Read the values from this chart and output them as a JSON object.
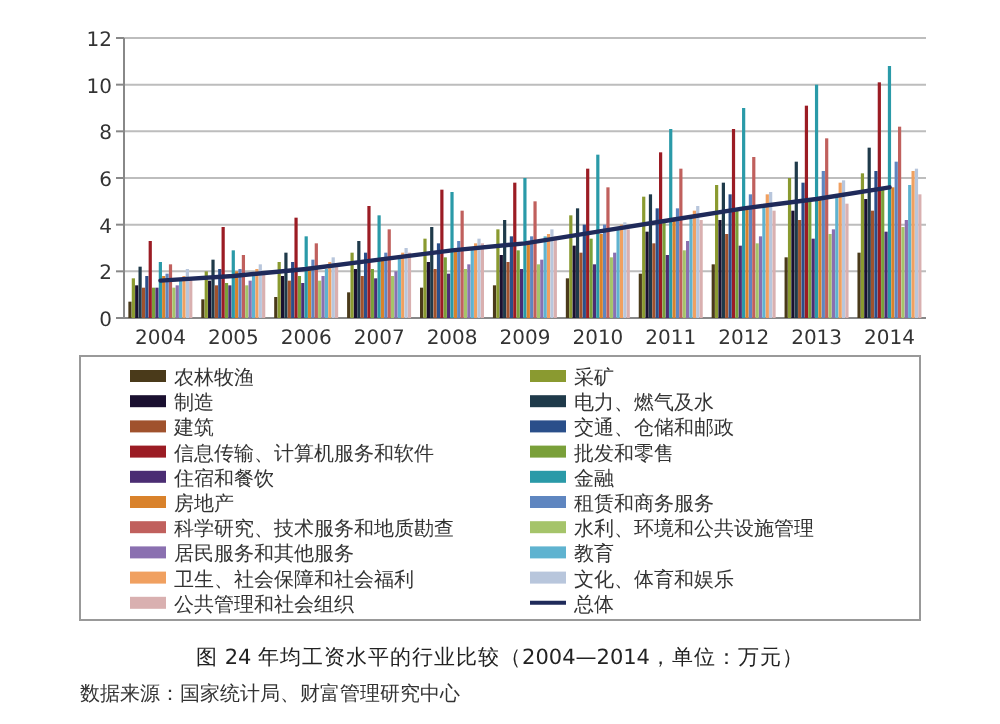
{
  "chart_data": {
    "type": "bar",
    "title": "图 24 年均工资水平的行业比较（2004—2014，单位：万元）",
    "annotations": [
      "数据来源：国家统计局、财富管理研究中心"
    ],
    "categories": [
      "2004",
      "2005",
      "2006",
      "2007",
      "2008",
      "2009",
      "2010",
      "2011",
      "2012",
      "2013",
      "2014"
    ],
    "ylim": [
      0,
      12
    ],
    "yticks": [
      0,
      2,
      4,
      6,
      8,
      10,
      12
    ],
    "grid": "y",
    "legend": "bottom",
    "series": [
      {
        "name": "农林牧渔",
        "color": "#4a3a1a",
        "values": [
          0.7,
          0.8,
          0.9,
          1.1,
          1.3,
          1.4,
          1.7,
          1.9,
          2.3,
          2.6,
          2.8
        ]
      },
      {
        "name": "采矿",
        "color": "#8a9a30",
        "values": [
          1.7,
          2.0,
          2.4,
          2.8,
          3.4,
          3.8,
          4.4,
          5.2,
          5.7,
          6.0,
          6.2
        ]
      },
      {
        "name": "制造",
        "color": "#1a1030",
        "values": [
          1.4,
          1.6,
          1.8,
          2.1,
          2.4,
          2.7,
          3.1,
          3.7,
          4.2,
          4.6,
          5.1
        ]
      },
      {
        "name": "电力、燃气及水",
        "color": "#1f3a4a",
        "values": [
          2.2,
          2.5,
          2.8,
          3.3,
          3.9,
          4.2,
          4.7,
          5.3,
          5.8,
          6.7,
          7.3
        ]
      },
      {
        "name": "建筑",
        "color": "#a0522d",
        "values": [
          1.3,
          1.4,
          1.6,
          1.8,
          2.1,
          2.4,
          2.8,
          3.2,
          3.6,
          4.2,
          4.6
        ]
      },
      {
        "name": "交通、仓储和邮政",
        "color": "#2a4f8a",
        "values": [
          1.8,
          2.1,
          2.4,
          2.8,
          3.2,
          3.5,
          4.0,
          4.7,
          5.3,
          5.8,
          6.3
        ]
      },
      {
        "name": "信息传输、计算机服务和软件",
        "color": "#9b1c24",
        "values": [
          3.3,
          3.9,
          4.3,
          4.8,
          5.5,
          5.8,
          6.4,
          7.1,
          8.1,
          9.1,
          10.1
        ]
      },
      {
        "name": "批发和零售",
        "color": "#7aa03a",
        "values": [
          1.3,
          1.5,
          1.8,
          2.1,
          2.6,
          2.9,
          3.4,
          4.1,
          4.6,
          5.0,
          5.6
        ]
      },
      {
        "name": "住宿和餐饮",
        "color": "#4b2d73",
        "values": [
          1.3,
          1.4,
          1.5,
          1.7,
          1.9,
          2.1,
          2.3,
          2.7,
          3.1,
          3.4,
          3.7
        ]
      },
      {
        "name": "金融",
        "color": "#2a9aa8",
        "values": [
          2.4,
          2.9,
          3.5,
          4.4,
          5.4,
          6.0,
          7.0,
          8.1,
          9.0,
          10.0,
          10.8
        ]
      },
      {
        "name": "房地产",
        "color": "#d9822b",
        "values": [
          1.8,
          2.0,
          2.2,
          2.6,
          3.0,
          3.2,
          3.6,
          4.3,
          4.7,
          5.1,
          5.6
        ]
      },
      {
        "name": "租赁和商务服务",
        "color": "#5f86c0",
        "values": [
          1.9,
          2.1,
          2.5,
          2.8,
          3.3,
          3.5,
          4.0,
          4.7,
          5.3,
          6.3,
          6.7
        ]
      },
      {
        "name": "科学研究、技术服务和地质勘查",
        "color": "#c0605d",
        "values": [
          2.3,
          2.7,
          3.2,
          3.8,
          4.6,
          5.0,
          5.6,
          6.4,
          6.9,
          7.7,
          8.2
        ]
      },
      {
        "name": "水利、环境和公共设施管理",
        "color": "#a5c46a",
        "values": [
          1.3,
          1.4,
          1.6,
          1.8,
          2.1,
          2.3,
          2.6,
          2.9,
          3.2,
          3.6,
          3.9
        ]
      },
      {
        "name": "居民服务和其他服务",
        "color": "#8a70b0",
        "values": [
          1.4,
          1.6,
          1.8,
          2.0,
          2.3,
          2.5,
          2.8,
          3.3,
          3.5,
          3.8,
          4.2
        ]
      },
      {
        "name": "教育",
        "color": "#5fb3d0",
        "values": [
          1.6,
          1.8,
          2.1,
          2.6,
          3.0,
          3.5,
          3.9,
          4.3,
          4.8,
          5.2,
          5.7
        ]
      },
      {
        "name": "卫生、社会保障和社会福利",
        "color": "#f0a060",
        "values": [
          1.8,
          2.1,
          2.4,
          2.8,
          3.2,
          3.6,
          4.0,
          4.6,
          5.3,
          5.8,
          6.3
        ]
      },
      {
        "name": "文化、体育和娱乐",
        "color": "#b8c6dc",
        "values": [
          2.1,
          2.3,
          2.6,
          3.0,
          3.4,
          3.8,
          4.1,
          4.8,
          5.4,
          5.9,
          6.4
        ]
      },
      {
        "name": "公共管理和社会组织",
        "color": "#d9b0b0",
        "values": [
          1.7,
          2.0,
          2.3,
          2.8,
          3.2,
          3.5,
          3.8,
          4.2,
          4.6,
          4.9,
          5.3
        ]
      },
      {
        "name": "总体",
        "color": "#1f2a5a",
        "type": "line",
        "values": [
          1.6,
          1.8,
          2.1,
          2.5,
          2.9,
          3.2,
          3.7,
          4.2,
          4.7,
          5.1,
          5.6
        ]
      }
    ]
  }
}
